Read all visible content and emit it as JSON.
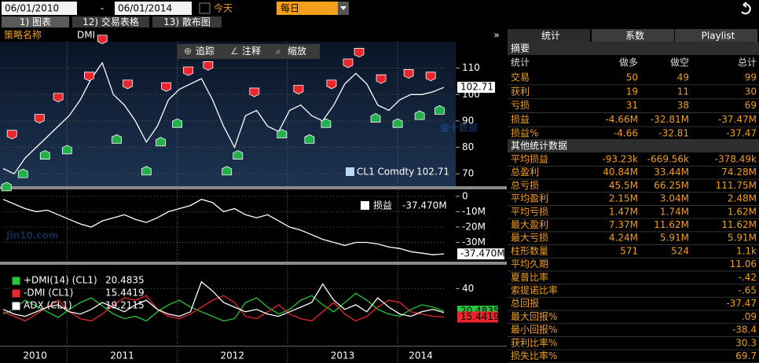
{
  "toolbar": {
    "start_date": "06/01/2010",
    "separator": "-",
    "end_date": "06/01/2014",
    "today": "今天",
    "frequency": "每日"
  },
  "tabs": [
    "1) 图表",
    "12) 交易表格",
    "13) 散布图"
  ],
  "strategy_label": "策略名称",
  "strategy": "DMI",
  "chart_tools": [
    "追踪",
    "注释",
    "缩放"
  ],
  "watermark": {
    "main": "Jin10.com",
    "side": "金十数据"
  },
  "year_labels": [
    "2010",
    "2011",
    "2012",
    "2013",
    "2014"
  ],
  "chart_data": [
    {
      "type": "line",
      "xlim": [
        2010.42,
        2014.42
      ],
      "year_boundaries": [
        2011,
        2012,
        2013,
        2014
      ],
      "x": [
        2010.42,
        2010.52,
        2010.62,
        2010.72,
        2010.82,
        2010.92,
        2011.02,
        2011.12,
        2011.22,
        2011.32,
        2011.42,
        2011.52,
        2011.62,
        2011.72,
        2011.82,
        2011.92,
        2012.02,
        2012.12,
        2012.22,
        2012.32,
        2012.42,
        2012.52,
        2012.62,
        2012.72,
        2012.82,
        2012.92,
        2013.02,
        2013.12,
        2013.22,
        2013.32,
        2013.42,
        2013.52,
        2013.62,
        2013.72,
        2013.82,
        2013.92,
        2014.02,
        2014.12,
        2014.22,
        2014.32,
        2014.42
      ],
      "series": [
        {
          "name": "CL1 Comdty",
          "color": "#ffffff",
          "legend_color": "#b9d7f0",
          "values": [
            72,
            70,
            76,
            80,
            84,
            88,
            92,
            98,
            106,
            112,
            100,
            96,
            90,
            82,
            88,
            98,
            102,
            104,
            106,
            98,
            88,
            80,
            92,
            94,
            88,
            86,
            94,
            96,
            92,
            90,
            96,
            104,
            108,
            104,
            96,
            94,
            98,
            100,
            100,
            101,
            102.71
          ]
        }
      ],
      "ylim": [
        65,
        120
      ],
      "yticks": [
        70,
        80,
        90,
        100,
        110
      ],
      "grid": true,
      "short_entries": {
        "color": "#e8262b",
        "x": [
          2010.5,
          2010.75,
          2010.92,
          2011.2,
          2011.32,
          2011.55,
          2011.9,
          2012.1,
          2012.28,
          2012.7,
          2013.1,
          2013.4,
          2013.55,
          2013.65,
          2013.85,
          2014.1,
          2014.3
        ],
        "y": [
          82,
          88,
          96,
          104,
          118,
          101,
          100,
          106,
          108,
          98,
          99,
          101,
          109,
          113,
          103,
          105,
          104
        ]
      },
      "long_entries": {
        "color": "#22b14c",
        "x": [
          2010.45,
          2010.6,
          2010.8,
          2011.0,
          2011.45,
          2011.72,
          2011.85,
          2012.0,
          2012.45,
          2012.55,
          2012.95,
          2013.2,
          2013.35,
          2013.8,
          2014.0,
          2014.2,
          2014.38
        ],
        "y": [
          68,
          73,
          80,
          82,
          86,
          74,
          85,
          92,
          74,
          80,
          88,
          86,
          92,
          94,
          92,
          95,
          97
        ]
      }
    },
    {
      "type": "line",
      "xlim": [
        2010.42,
        2014.42
      ],
      "x": [
        2010.42,
        2010.52,
        2010.62,
        2010.72,
        2010.82,
        2010.92,
        2011.02,
        2011.12,
        2011.22,
        2011.32,
        2011.42,
        2011.52,
        2011.62,
        2011.72,
        2011.82,
        2011.92,
        2012.02,
        2012.12,
        2012.22,
        2012.32,
        2012.42,
        2012.52,
        2012.62,
        2012.72,
        2012.82,
        2012.92,
        2013.02,
        2013.12,
        2013.22,
        2013.32,
        2013.42,
        2013.52,
        2013.62,
        2013.72,
        2013.82,
        2013.92,
        2014.02,
        2014.12,
        2014.22,
        2014.32,
        2014.42
      ],
      "series": [
        {
          "name": "损益",
          "color": "#ffffff",
          "values": [
            -2000000,
            -5000000,
            -8000000,
            -10000000,
            -9000000,
            -12000000,
            -15000000,
            -18000000,
            -20000000,
            -16000000,
            -14000000,
            -12000000,
            -15000000,
            -17000000,
            -14000000,
            -10000000,
            -8000000,
            -6000000,
            -2000000,
            -4000000,
            -10000000,
            -8000000,
            -12000000,
            -14000000,
            -12000000,
            -16000000,
            -20000000,
            -22000000,
            -25000000,
            -28000000,
            -30000000,
            -32000000,
            -30000000,
            -30000000,
            -31000000,
            -33000000,
            -34000000,
            -36000000,
            -37000000,
            -38000000,
            -37470000
          ],
          "last_label": "-37.470M"
        }
      ],
      "ylim": [
        -42000000,
        4000000
      ],
      "yticks": [
        0,
        {
          "value": -10000000,
          "label": "-10M"
        },
        {
          "value": -20000000,
          "label": "-20M"
        },
        {
          "value": -30000000,
          "label": "-30M"
        }
      ],
      "grid": true
    },
    {
      "type": "line",
      "xlim": [
        2010.42,
        2014.42
      ],
      "x": [
        2010.42,
        2010.52,
        2010.62,
        2010.72,
        2010.82,
        2010.92,
        2011.02,
        2011.12,
        2011.22,
        2011.32,
        2011.42,
        2011.52,
        2011.62,
        2011.72,
        2011.82,
        2011.92,
        2012.02,
        2012.12,
        2012.22,
        2012.32,
        2012.42,
        2012.52,
        2012.62,
        2012.72,
        2012.82,
        2012.92,
        2013.02,
        2013.12,
        2013.22,
        2013.32,
        2013.42,
        2013.52,
        2013.62,
        2013.72,
        2013.82,
        2013.92,
        2014.02,
        2014.12,
        2014.22,
        2014.32,
        2014.42
      ],
      "series": [
        {
          "name": "+DMI(14) (CL1)",
          "color": "#22c93a",
          "values": [
            18,
            22,
            30,
            25,
            20,
            15,
            22,
            28,
            32,
            25,
            18,
            14,
            16,
            12,
            20,
            26,
            30,
            24,
            20,
            16,
            12,
            14,
            28,
            32,
            24,
            18,
            22,
            30,
            34,
            26,
            20,
            28,
            36,
            30,
            22,
            18,
            16,
            22,
            26,
            24,
            20.4835
          ]
        },
        {
          "name": "-DMI (CL1)",
          "color": "#e8262b",
          "values": [
            20,
            16,
            12,
            18,
            24,
            30,
            20,
            14,
            12,
            18,
            26,
            32,
            30,
            34,
            22,
            16,
            14,
            18,
            24,
            30,
            34,
            28,
            16,
            14,
            20,
            26,
            18,
            14,
            12,
            20,
            28,
            18,
            12,
            16,
            24,
            30,
            28,
            20,
            18,
            16,
            15.4419
          ]
        },
        {
          "name": "ADX (CL1)",
          "color": "#ffffff",
          "values": [
            22,
            18,
            16,
            20,
            24,
            26,
            20,
            18,
            22,
            28,
            24,
            20,
            26,
            30,
            22,
            18,
            16,
            20,
            46,
            38,
            28,
            24,
            20,
            22,
            18,
            16,
            20,
            24,
            28,
            44,
            30,
            22,
            26,
            20,
            32,
            24,
            18,
            16,
            20,
            22,
            19.2115
          ]
        }
      ],
      "ylim": [
        -4,
        60
      ],
      "yticks": [
        40
      ],
      "grid": true
    }
  ],
  "stats_panel": {
    "tabs": [
      "统计",
      "系数",
      "Playlist"
    ],
    "summary_title": "摘要",
    "columns": [
      "统计",
      "做多",
      "做空",
      "总计"
    ],
    "summary_rows": [
      [
        "交易",
        "50",
        "49",
        "99"
      ],
      [
        "获利",
        "19",
        "11",
        "30"
      ],
      [
        "亏损",
        "31",
        "38",
        "69"
      ],
      [
        "损益",
        "-4.66M",
        "-32.81M",
        "-37.47M"
      ],
      [
        "损益%",
        "-4.66",
        "-32.81",
        "-37.47"
      ]
    ],
    "other_title": "其他统计数据",
    "other_rows": [
      [
        "平均损益",
        "-93.23k",
        "-669.56k",
        "-378.49k"
      ],
      [
        "总盈利",
        "40.84M",
        "33.44M",
        "74.28M"
      ],
      [
        "总亏损",
        "45.5M",
        "66.25M",
        "111.75M"
      ],
      [
        "平均盈利",
        "2.15M",
        "3.04M",
        "2.48M"
      ],
      [
        "平均亏损",
        "1.47M",
        "1.74M",
        "1.62M"
      ],
      [
        "最大盈利",
        "7.37M",
        "11.62M",
        "11.62M"
      ],
      [
        "最大亏损",
        "4.24M",
        "5.91M",
        "5.91M"
      ],
      [
        "柱形数量",
        "571",
        "524",
        "1.1k"
      ],
      [
        "平均久期",
        "11.06"
      ],
      [
        "夏普比率",
        "-.42"
      ],
      [
        "索提诺比率",
        "-.65"
      ],
      [
        "总回报",
        "-37.47"
      ],
      [
        "最大回报%",
        ".09"
      ],
      [
        "最小回报%",
        "-38.4"
      ],
      [
        "获利比率%",
        "30.3"
      ],
      [
        "损失比率%",
        "69.7"
      ]
    ]
  }
}
